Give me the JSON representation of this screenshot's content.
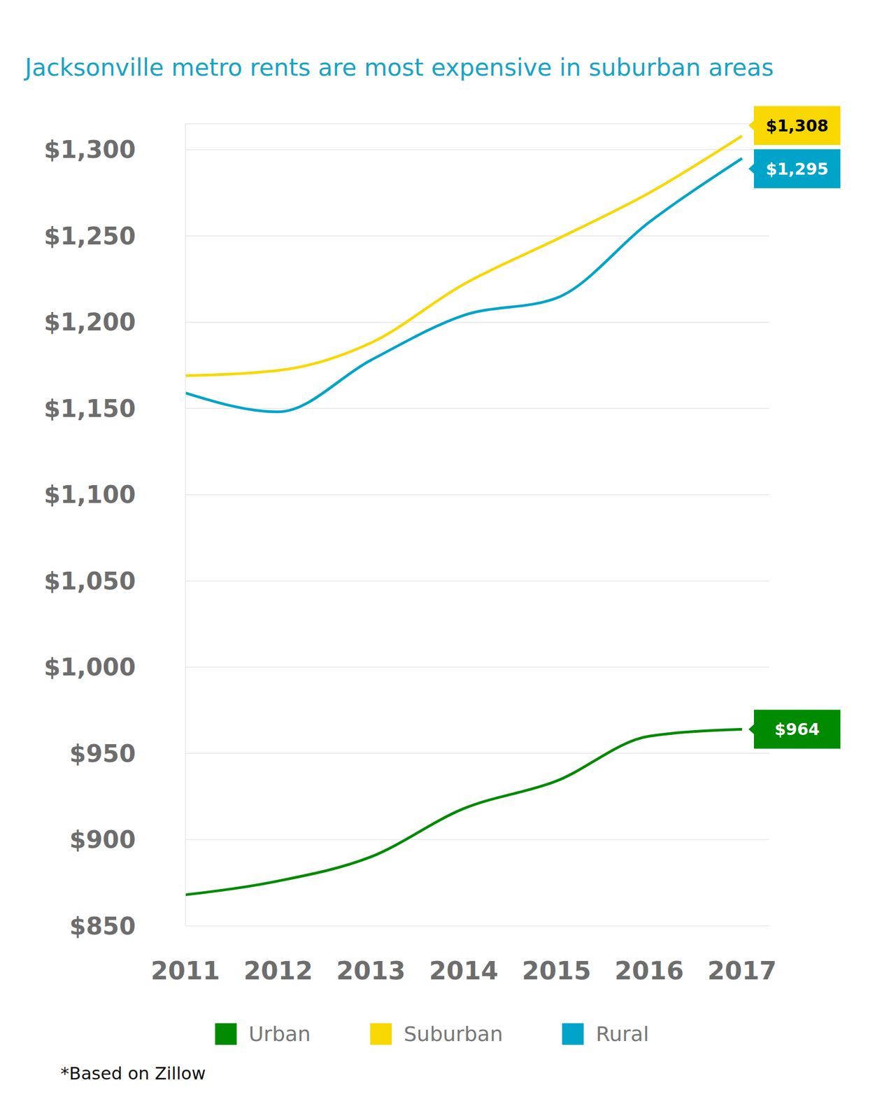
{
  "chart_data": {
    "type": "line",
    "title": "Jacksonville metro rents are most expensive in suburban areas",
    "footnote": "*Based on Zillow",
    "categories": [
      "2011",
      "2012",
      "2013",
      "2014",
      "2015",
      "2016",
      "2017"
    ],
    "series": [
      {
        "name": "Urban",
        "color": "#008a00",
        "values": [
          868,
          876,
          890,
          918,
          934,
          960,
          964
        ],
        "value_labels": [
          null,
          null,
          null,
          null,
          null,
          null,
          "$964"
        ]
      },
      {
        "name": "Suburban",
        "color": "#f8d800",
        "values": [
          1169,
          1172,
          1188,
          1222,
          1248,
          1275,
          1308
        ],
        "value_labels": [
          null,
          null,
          null,
          null,
          null,
          null,
          "$1,308"
        ]
      },
      {
        "name": "Rural",
        "color": "#00a4c8",
        "values": [
          1159,
          1148,
          1178,
          1204,
          1214,
          1258,
          1295
        ],
        "value_labels": [
          null,
          null,
          null,
          null,
          null,
          null,
          "$1,295"
        ]
      }
    ],
    "ylim": [
      850,
      1315
    ],
    "yticks": [
      {
        "value": 850,
        "label": "$850"
      },
      {
        "value": 900,
        "label": "$900"
      },
      {
        "value": 950,
        "label": "$950"
      },
      {
        "value": 1000,
        "label": "$1,000"
      },
      {
        "value": 1050,
        "label": "$1,050"
      },
      {
        "value": 1100,
        "label": "$1,100"
      },
      {
        "value": 1150,
        "label": "$1,150"
      },
      {
        "value": 1200,
        "label": "$1,200"
      },
      {
        "value": 1250,
        "label": "$1,250"
      },
      {
        "value": 1300,
        "label": "$1,300"
      }
    ],
    "grid": true,
    "legend": "bottom",
    "data_labels": true
  }
}
